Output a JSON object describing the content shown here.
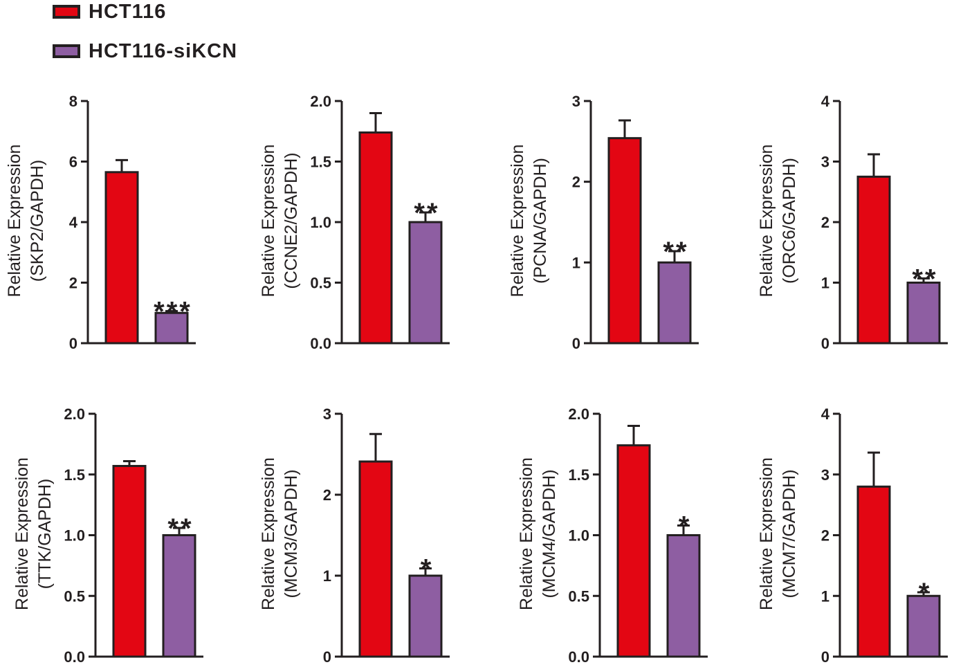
{
  "legend": [
    {
      "label": "HCT116",
      "color": "#e30613"
    },
    {
      "label": "HCT116-siKCN",
      "color": "#8e5ea2"
    }
  ],
  "chart_data": [
    {
      "type": "bar",
      "gene": "SKP2",
      "ylabel_line1": "Relative Expression",
      "ylabel_line2": "(SKP2/GAPDH)",
      "ylim": [
        0,
        8
      ],
      "ticks": [
        0,
        2,
        4,
        6,
        8
      ],
      "tick_labels": [
        "0",
        "2",
        "4",
        "6",
        "8"
      ],
      "categories": [
        "HCT116",
        "HCT116-siKCN"
      ],
      "values": [
        5.65,
        1.0
      ],
      "errors": [
        0.4,
        0.06
      ],
      "significance": "***"
    },
    {
      "type": "bar",
      "gene": "CCNE2",
      "ylabel_line1": "Relative Expression",
      "ylabel_line2": "(CCNE2/GAPDH)",
      "ylim": [
        0,
        2.0
      ],
      "ticks": [
        0,
        0.5,
        1.0,
        1.5,
        2.0
      ],
      "tick_labels": [
        "0.0",
        "0.5",
        "1.0",
        "1.5",
        "2.0"
      ],
      "categories": [
        "HCT116",
        "HCT116-siKCN"
      ],
      "values": [
        1.74,
        1.0
      ],
      "errors": [
        0.16,
        0.08
      ],
      "significance": "**"
    },
    {
      "type": "bar",
      "gene": "PCNA",
      "ylabel_line1": "Relative Expression",
      "ylabel_line2": "(PCNA/GAPDH)",
      "ylim": [
        0,
        3
      ],
      "ticks": [
        0,
        1,
        2,
        3
      ],
      "tick_labels": [
        "0",
        "1",
        "2",
        "3"
      ],
      "categories": [
        "HCT116",
        "HCT116-siKCN"
      ],
      "values": [
        2.54,
        1.0
      ],
      "errors": [
        0.22,
        0.14
      ],
      "significance": "**"
    },
    {
      "type": "bar",
      "gene": "ORC6",
      "ylabel_line1": "Relative Expression",
      "ylabel_line2": "(ORC6/GAPDH)",
      "ylim": [
        0,
        4
      ],
      "ticks": [
        0,
        1,
        2,
        3,
        4
      ],
      "tick_labels": [
        "0",
        "1",
        "2",
        "3",
        "4"
      ],
      "categories": [
        "HCT116",
        "HCT116-siKCN"
      ],
      "values": [
        2.75,
        1.0
      ],
      "errors": [
        0.37,
        0.07
      ],
      "significance": "**"
    },
    {
      "type": "bar",
      "gene": "TTK",
      "ylabel_line1": "Relative Expression",
      "ylabel_line2": "(TTK/GAPDH)",
      "ylim": [
        0,
        2.0
      ],
      "ticks": [
        0,
        0.5,
        1.0,
        1.5,
        2.0
      ],
      "tick_labels": [
        "0.0",
        "0.5",
        "1.0",
        "1.5",
        "2.0"
      ],
      "categories": [
        "HCT116",
        "HCT116-siKCN"
      ],
      "values": [
        1.57,
        1.0
      ],
      "errors": [
        0.04,
        0.06
      ],
      "significance": "**"
    },
    {
      "type": "bar",
      "gene": "MCM3",
      "ylabel_line1": "Relative Expression",
      "ylabel_line2": "(MCM3/GAPDH)",
      "ylim": [
        0,
        3
      ],
      "ticks": [
        0,
        1,
        2,
        3
      ],
      "tick_labels": [
        "0",
        "1",
        "2",
        "3"
      ],
      "categories": [
        "HCT116",
        "HCT116-siKCN"
      ],
      "values": [
        2.41,
        1.0
      ],
      "errors": [
        0.34,
        0.09
      ],
      "significance": "*"
    },
    {
      "type": "bar",
      "gene": "MCM4",
      "ylabel_line1": "Relative Expression",
      "ylabel_line2": "(MCM4/GAPDH)",
      "ylim": [
        0,
        2.0
      ],
      "ticks": [
        0,
        0.5,
        1.0,
        1.5,
        2.0
      ],
      "tick_labels": [
        "0.0",
        "0.5",
        "1.0",
        "1.5",
        "2.0"
      ],
      "categories": [
        "HCT116",
        "HCT116-siKCN"
      ],
      "values": [
        1.74,
        1.0
      ],
      "errors": [
        0.16,
        0.08
      ],
      "significance": "*"
    },
    {
      "type": "bar",
      "gene": "MCM7",
      "ylabel_line1": "Relative Expression",
      "ylabel_line2": "(MCM7/GAPDH)",
      "ylim": [
        0,
        4
      ],
      "ticks": [
        0,
        1,
        2,
        3,
        4
      ],
      "tick_labels": [
        "0",
        "1",
        "2",
        "3",
        "4"
      ],
      "categories": [
        "HCT116",
        "HCT116-siKCN"
      ],
      "values": [
        2.8,
        1.0
      ],
      "errors": [
        0.56,
        0.06
      ],
      "significance": "*"
    }
  ]
}
